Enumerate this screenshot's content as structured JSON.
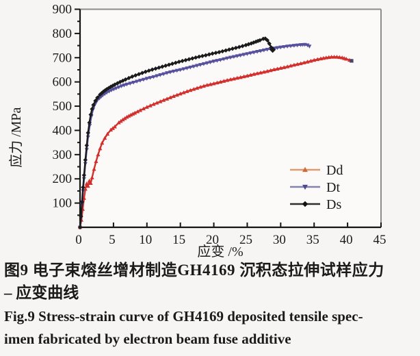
{
  "caption": {
    "zh_line1": "图9  电子束熔丝增材制造GH4169 沉积态拉伸试样应力",
    "zh_line2": "– 应变曲线",
    "en_line1": "Fig.9   Stress-strain curve of GH4169 deposited tensile spec-",
    "en_line2": "imen fabricated by electron beam fuse additive"
  },
  "colors": {
    "page_bg": "#f6f5f3",
    "plot_bg": "#fbfaf9",
    "axis": "#151515",
    "frame_gray": "#8c8c8c",
    "text": "#1b1b1b",
    "dd_red": "#d2302c",
    "dt_blue": "#56519c",
    "ds_black": "#1b1b1b"
  },
  "chart_data": {
    "type": "line",
    "title": "",
    "xlabel": "应变 /%",
    "ylabel": "应力 /MPa",
    "xlim": [
      0,
      45
    ],
    "ylim": [
      0,
      900
    ],
    "x_tick_step": 5,
    "y_tick_step": 100,
    "y_minor_step": 50,
    "grid": false,
    "legend_position": "inside lower right",
    "legend": [
      {
        "label": "Dd",
        "line_color": "#dd9a6e",
        "marker_color": "#cf6a3c",
        "marker": "triangle-up"
      },
      {
        "label": "Dt",
        "line_color": "#8383ad",
        "marker_color": "#4d4a8f",
        "marker": "triangle-down"
      },
      {
        "label": "Ds",
        "line_color": "#2e2e2e",
        "marker_color": "#111111",
        "marker": "diamond"
      }
    ],
    "series": [
      {
        "name": "Dd",
        "color": "#d2302c",
        "marker": "triangle-up",
        "end_marker_color": "#4a4468",
        "points": [
          [
            0,
            0
          ],
          [
            0.2,
            30
          ],
          [
            0.4,
            75
          ],
          [
            0.6,
            120
          ],
          [
            0.8,
            158
          ],
          [
            1.0,
            180
          ],
          [
            1.2,
            170
          ],
          [
            1.4,
            192
          ],
          [
            1.6,
            182
          ],
          [
            1.8,
            205
          ],
          [
            2.1,
            240
          ],
          [
            2.4,
            272
          ],
          [
            2.7,
            300
          ],
          [
            3.0,
            325
          ],
          [
            3.3,
            348
          ],
          [
            3.7,
            368
          ],
          [
            4.1,
            385
          ],
          [
            4.6,
            402
          ],
          [
            5.2,
            415
          ],
          [
            5.8,
            432
          ],
          [
            6.4,
            444
          ],
          [
            7.0,
            455
          ],
          [
            7.6,
            464
          ],
          [
            8.2,
            472
          ],
          [
            9.0,
            483
          ],
          [
            10.0,
            496
          ],
          [
            11.0,
            508
          ],
          [
            12.0,
            519
          ],
          [
            13.0,
            530
          ],
          [
            14.0,
            541
          ],
          [
            15.0,
            551
          ],
          [
            16.0,
            561
          ],
          [
            17.0,
            570
          ],
          [
            18.0,
            579
          ],
          [
            19.0,
            587
          ],
          [
            20.0,
            593
          ],
          [
            21.0,
            600
          ],
          [
            22.0,
            607
          ],
          [
            23.0,
            613
          ],
          [
            24.0,
            619
          ],
          [
            25.0,
            625
          ],
          [
            26.0,
            632
          ],
          [
            27.0,
            638
          ],
          [
            28.0,
            644
          ],
          [
            29.0,
            651
          ],
          [
            30.0,
            657
          ],
          [
            31.0,
            663
          ],
          [
            32.0,
            670
          ],
          [
            33.0,
            676
          ],
          [
            34.0,
            683
          ],
          [
            35.0,
            690
          ],
          [
            36.0,
            696
          ],
          [
            36.8,
            700
          ],
          [
            37.6,
            703
          ],
          [
            38.4,
            703
          ],
          [
            39.2,
            700
          ],
          [
            39.8,
            695
          ],
          [
            40.3,
            690
          ],
          [
            40.6,
            687
          ]
        ]
      },
      {
        "name": "Dt",
        "color": "#56519c",
        "marker": "triangle-down",
        "points": [
          [
            0,
            0
          ],
          [
            0.15,
            40
          ],
          [
            0.3,
            95
          ],
          [
            0.45,
            150
          ],
          [
            0.6,
            200
          ],
          [
            0.8,
            262
          ],
          [
            1.0,
            320
          ],
          [
            1.2,
            372
          ],
          [
            1.45,
            420
          ],
          [
            1.7,
            458
          ],
          [
            1.95,
            487
          ],
          [
            2.2,
            505
          ],
          [
            2.5,
            520
          ],
          [
            2.9,
            533
          ],
          [
            3.4,
            545
          ],
          [
            4.0,
            556
          ],
          [
            4.7,
            566
          ],
          [
            5.4,
            574
          ],
          [
            6.2,
            583
          ],
          [
            7.0,
            590
          ],
          [
            8.0,
            598
          ],
          [
            9.0,
            606
          ],
          [
            10.0,
            614
          ],
          [
            11.0,
            621
          ],
          [
            12.0,
            629
          ],
          [
            13.0,
            637
          ],
          [
            14.0,
            644
          ],
          [
            15.0,
            650
          ],
          [
            16.0,
            657
          ],
          [
            17.0,
            664
          ],
          [
            18.0,
            671
          ],
          [
            19.0,
            678
          ],
          [
            20.0,
            685
          ],
          [
            21.0,
            691
          ],
          [
            22.0,
            698
          ],
          [
            23.0,
            704
          ],
          [
            24.0,
            710
          ],
          [
            25.0,
            716
          ],
          [
            26.0,
            722
          ],
          [
            27.0,
            728
          ],
          [
            28.0,
            734
          ],
          [
            29.0,
            739
          ],
          [
            30.0,
            743
          ],
          [
            31.0,
            747
          ],
          [
            32.0,
            750
          ],
          [
            33.0,
            753
          ],
          [
            33.6,
            754
          ],
          [
            34.0,
            752
          ],
          [
            34.3,
            747
          ]
        ]
      },
      {
        "name": "Ds",
        "color": "#1b1b1b",
        "marker": "diamond",
        "points": [
          [
            0,
            0
          ],
          [
            0.15,
            45
          ],
          [
            0.3,
            105
          ],
          [
            0.45,
            165
          ],
          [
            0.6,
            215
          ],
          [
            0.8,
            278
          ],
          [
            1.0,
            338
          ],
          [
            1.2,
            390
          ],
          [
            1.4,
            432
          ],
          [
            1.6,
            465
          ],
          [
            1.8,
            488
          ],
          [
            2.0,
            505
          ],
          [
            2.3,
            522
          ],
          [
            2.6,
            535
          ],
          [
            3.0,
            548
          ],
          [
            3.5,
            560
          ],
          [
            4.0,
            570
          ],
          [
            4.6,
            580
          ],
          [
            5.2,
            589
          ],
          [
            6.0,
            600
          ],
          [
            6.8,
            610
          ],
          [
            7.8,
            622
          ],
          [
            8.8,
            632
          ],
          [
            9.8,
            642
          ],
          [
            10.8,
            651
          ],
          [
            11.8,
            659
          ],
          [
            12.8,
            667
          ],
          [
            13.8,
            675
          ],
          [
            14.8,
            683
          ],
          [
            15.8,
            690
          ],
          [
            16.8,
            697
          ],
          [
            17.8,
            704
          ],
          [
            18.8,
            710
          ],
          [
            19.8,
            717
          ],
          [
            20.8,
            723
          ],
          [
            21.8,
            730
          ],
          [
            22.8,
            737
          ],
          [
            23.8,
            744
          ],
          [
            24.8,
            752
          ],
          [
            25.6,
            759
          ],
          [
            26.3,
            766
          ],
          [
            26.9,
            772
          ],
          [
            27.4,
            778
          ],
          [
            27.7,
            779
          ],
          [
            28.0,
            772
          ],
          [
            28.3,
            758
          ],
          [
            28.6,
            742
          ],
          [
            28.8,
            733
          ]
        ]
      }
    ]
  }
}
